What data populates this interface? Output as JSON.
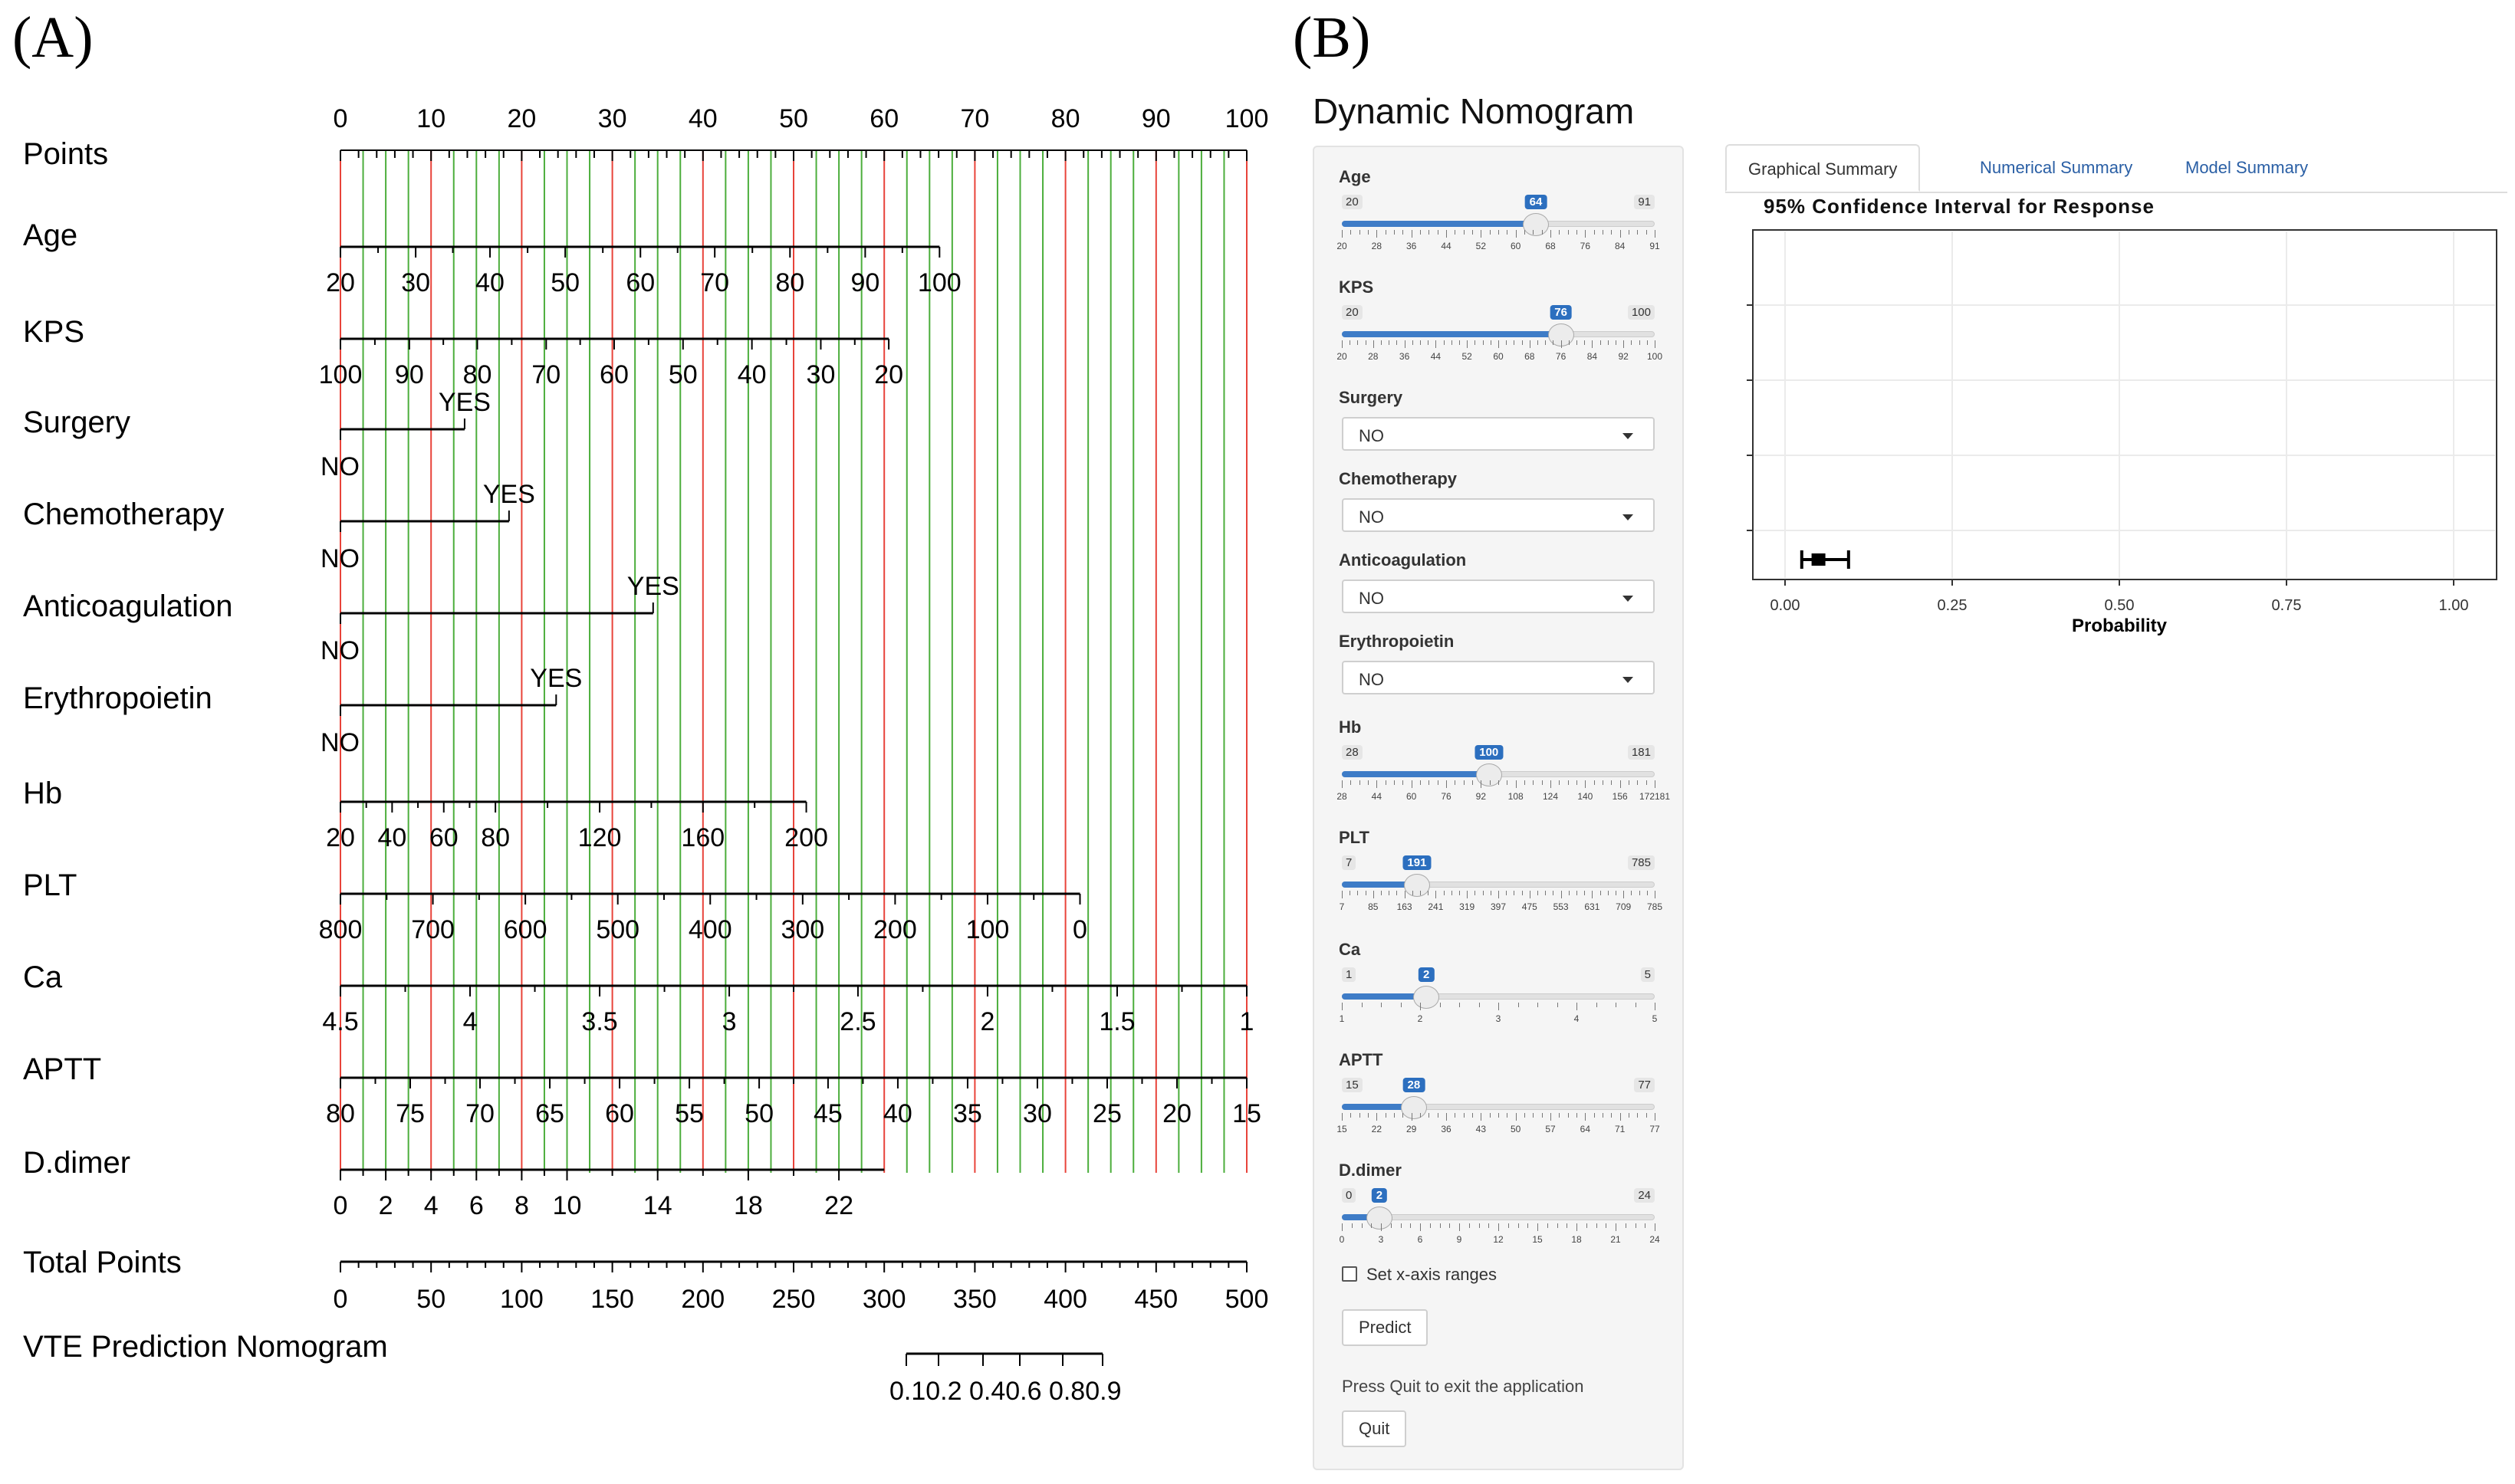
{
  "panel_labels": {
    "a": "(A)",
    "b": "(B)"
  },
  "nomogram": {
    "points_label": "Points",
    "points_ticks": [
      "0",
      "10",
      "20",
      "30",
      "40",
      "50",
      "60",
      "70",
      "80",
      "90",
      "100"
    ],
    "variables": [
      {
        "label": "Age",
        "ticks": [
          "20",
          "30",
          "40",
          "50",
          "60",
          "70",
          "80",
          "90",
          "100"
        ]
      },
      {
        "label": "KPS",
        "ticks": [
          "100",
          "90",
          "80",
          "70",
          "60",
          "50",
          "40",
          "30",
          "20"
        ]
      },
      {
        "label": "Surgery",
        "low": "NO",
        "high": "YES"
      },
      {
        "label": "Chemotherapy",
        "low": "NO",
        "high": "YES"
      },
      {
        "label": "Anticoagulation",
        "low": "NO",
        "high": "YES"
      },
      {
        "label": "Erythropoietin",
        "low": "NO",
        "high": "YES"
      },
      {
        "label": "Hb",
        "ticks": [
          "20",
          "40",
          "60",
          "80",
          "120",
          "160",
          "200"
        ]
      },
      {
        "label": "PLT",
        "ticks": [
          "800",
          "700",
          "600",
          "500",
          "400",
          "300",
          "200",
          "100",
          "0"
        ]
      },
      {
        "label": "Ca",
        "ticks": [
          "4.5",
          "4",
          "3.5",
          "3",
          "2.5",
          "2",
          "1.5",
          "1"
        ]
      },
      {
        "label": "APTT",
        "ticks": [
          "80",
          "75",
          "70",
          "65",
          "60",
          "55",
          "50",
          "45",
          "40",
          "35",
          "30",
          "25",
          "20",
          "15"
        ]
      },
      {
        "label": "D.dimer",
        "ticks": [
          "0",
          "2",
          "4",
          "6",
          "8",
          "10",
          "14",
          "18",
          "22"
        ]
      }
    ],
    "total_points_label": "Total Points",
    "total_ticks": [
      "0",
      "50",
      "100",
      "150",
      "200",
      "250",
      "300",
      "350",
      "400",
      "450",
      "500"
    ],
    "vte_label": "VTE Prediction Nomogram",
    "vte_ticks": "0.10.2 0.40.6 0.80.9"
  },
  "app": {
    "title": "Dynamic Nomogram",
    "controls": {
      "age": {
        "label": "Age",
        "min": "20",
        "max": "91",
        "value": "64",
        "fraction": 0.62,
        "grid": [
          "20",
          "28",
          "36",
          "44",
          "52",
          "60",
          "68",
          "76",
          "84",
          "91"
        ]
      },
      "kps": {
        "label": "KPS",
        "min": "20",
        "max": "100",
        "value": "76",
        "fraction": 0.7,
        "grid": [
          "20",
          "28",
          "36",
          "44",
          "52",
          "60",
          "68",
          "76",
          "84",
          "92",
          "100"
        ]
      },
      "surgery": {
        "label": "Surgery",
        "value": "NO"
      },
      "chemotherapy": {
        "label": "Chemotherapy",
        "value": "NO"
      },
      "anticoagulation": {
        "label": "Anticoagulation",
        "value": "NO"
      },
      "erythropoietin": {
        "label": "Erythropoietin",
        "value": "NO"
      },
      "hb": {
        "label": "Hb",
        "min": "28",
        "max": "181",
        "value": "100",
        "fraction": 0.47,
        "grid": [
          "28",
          "44",
          "60",
          "76",
          "92",
          "108",
          "124",
          "140",
          "156",
          "172181"
        ]
      },
      "plt": {
        "label": "PLT",
        "min": "7",
        "max": "785",
        "value": "191",
        "fraction": 0.24,
        "grid": [
          "7",
          "85",
          "163",
          "241",
          "319",
          "397",
          "475",
          "553",
          "631",
          "709",
          "785"
        ]
      },
      "ca": {
        "label": "Ca",
        "min": "1",
        "max": "5",
        "value": "2",
        "fraction": 0.27,
        "grid": [
          "1",
          "2",
          "3",
          "4",
          "5"
        ]
      },
      "aptt": {
        "label": "APTT",
        "min": "15",
        "max": "77",
        "value": "28",
        "fraction": 0.23,
        "grid": [
          "15",
          "22",
          "29",
          "36",
          "43",
          "50",
          "57",
          "64",
          "71",
          "77"
        ]
      },
      "ddimer": {
        "label": "D.dimer",
        "min": "0",
        "max": "24",
        "value": "2",
        "fraction": 0.12,
        "grid": [
          "0",
          "3",
          "6",
          "9",
          "12",
          "15",
          "18",
          "21",
          "24"
        ]
      }
    },
    "checkbox_label": "Set x-axis ranges",
    "predict_label": "Predict",
    "help_text": "Press Quit to exit the application",
    "quit_label": "Quit",
    "tabs": [
      "Graphical Summary",
      "Numerical Summary",
      "Model Summary"
    ],
    "chart": {
      "title": "95% Confidence Interval for Response",
      "x_label": "Probability",
      "x_ticks": [
        "0.00",
        "0.25",
        "0.50",
        "0.75",
        "1.00"
      ],
      "estimate": 0.05,
      "ci": [
        0.025,
        0.095
      ]
    }
  }
}
